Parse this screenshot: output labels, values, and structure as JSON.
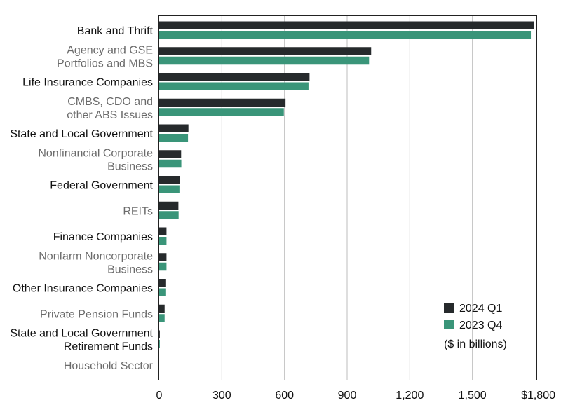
{
  "chart_data": {
    "type": "bar",
    "orientation": "horizontal",
    "categories": [
      [
        "Bank and Thrift"
      ],
      [
        "Agency and GSE",
        "Portfolios and MBS"
      ],
      [
        "Life Insurance Companies"
      ],
      [
        "CMBS, CDO and",
        "other ABS Issues"
      ],
      [
        "State and Local Government"
      ],
      [
        "Nonfinancial Corporate",
        "Business"
      ],
      [
        "Federal Government"
      ],
      [
        "REITs"
      ],
      [
        "Finance Companies"
      ],
      [
        "Nonfarm Noncorporate",
        "Business"
      ],
      [
        "Other Insurance Companies"
      ],
      [
        "Private Pension Funds"
      ],
      [
        "State and Local Government",
        "Retirement Funds"
      ],
      [
        "Household Sector"
      ]
    ],
    "label_emphasis": [
      "bold",
      "normal",
      "bold",
      "normal",
      "bold",
      "normal",
      "bold",
      "normal",
      "bold",
      "normal",
      "bold",
      "normal",
      "bold",
      "normal"
    ],
    "series": [
      {
        "name": "2024 Q1",
        "color": "#262a2c",
        "values": [
          1795,
          1015,
          720,
          605,
          140,
          105,
          98,
          92,
          35,
          35,
          33,
          26,
          3,
          0
        ]
      },
      {
        "name": "2023 Q4",
        "color": "#3a9579",
        "values": [
          1780,
          1005,
          715,
          597,
          138,
          106,
          97,
          93,
          35,
          35,
          33,
          26,
          3,
          0
        ]
      }
    ],
    "xlim": [
      0,
      1800
    ],
    "xticks": [
      0,
      300,
      600,
      900,
      1200,
      1500,
      1800
    ],
    "xtick_labels": [
      "0",
      "300",
      "600",
      "900",
      "1,200",
      "1,500",
      "$1,800"
    ],
    "grid": "vertical",
    "legend_position": "bottom-right",
    "note": "($ in billions)",
    "title": "",
    "xlabel": "",
    "ylabel": ""
  }
}
